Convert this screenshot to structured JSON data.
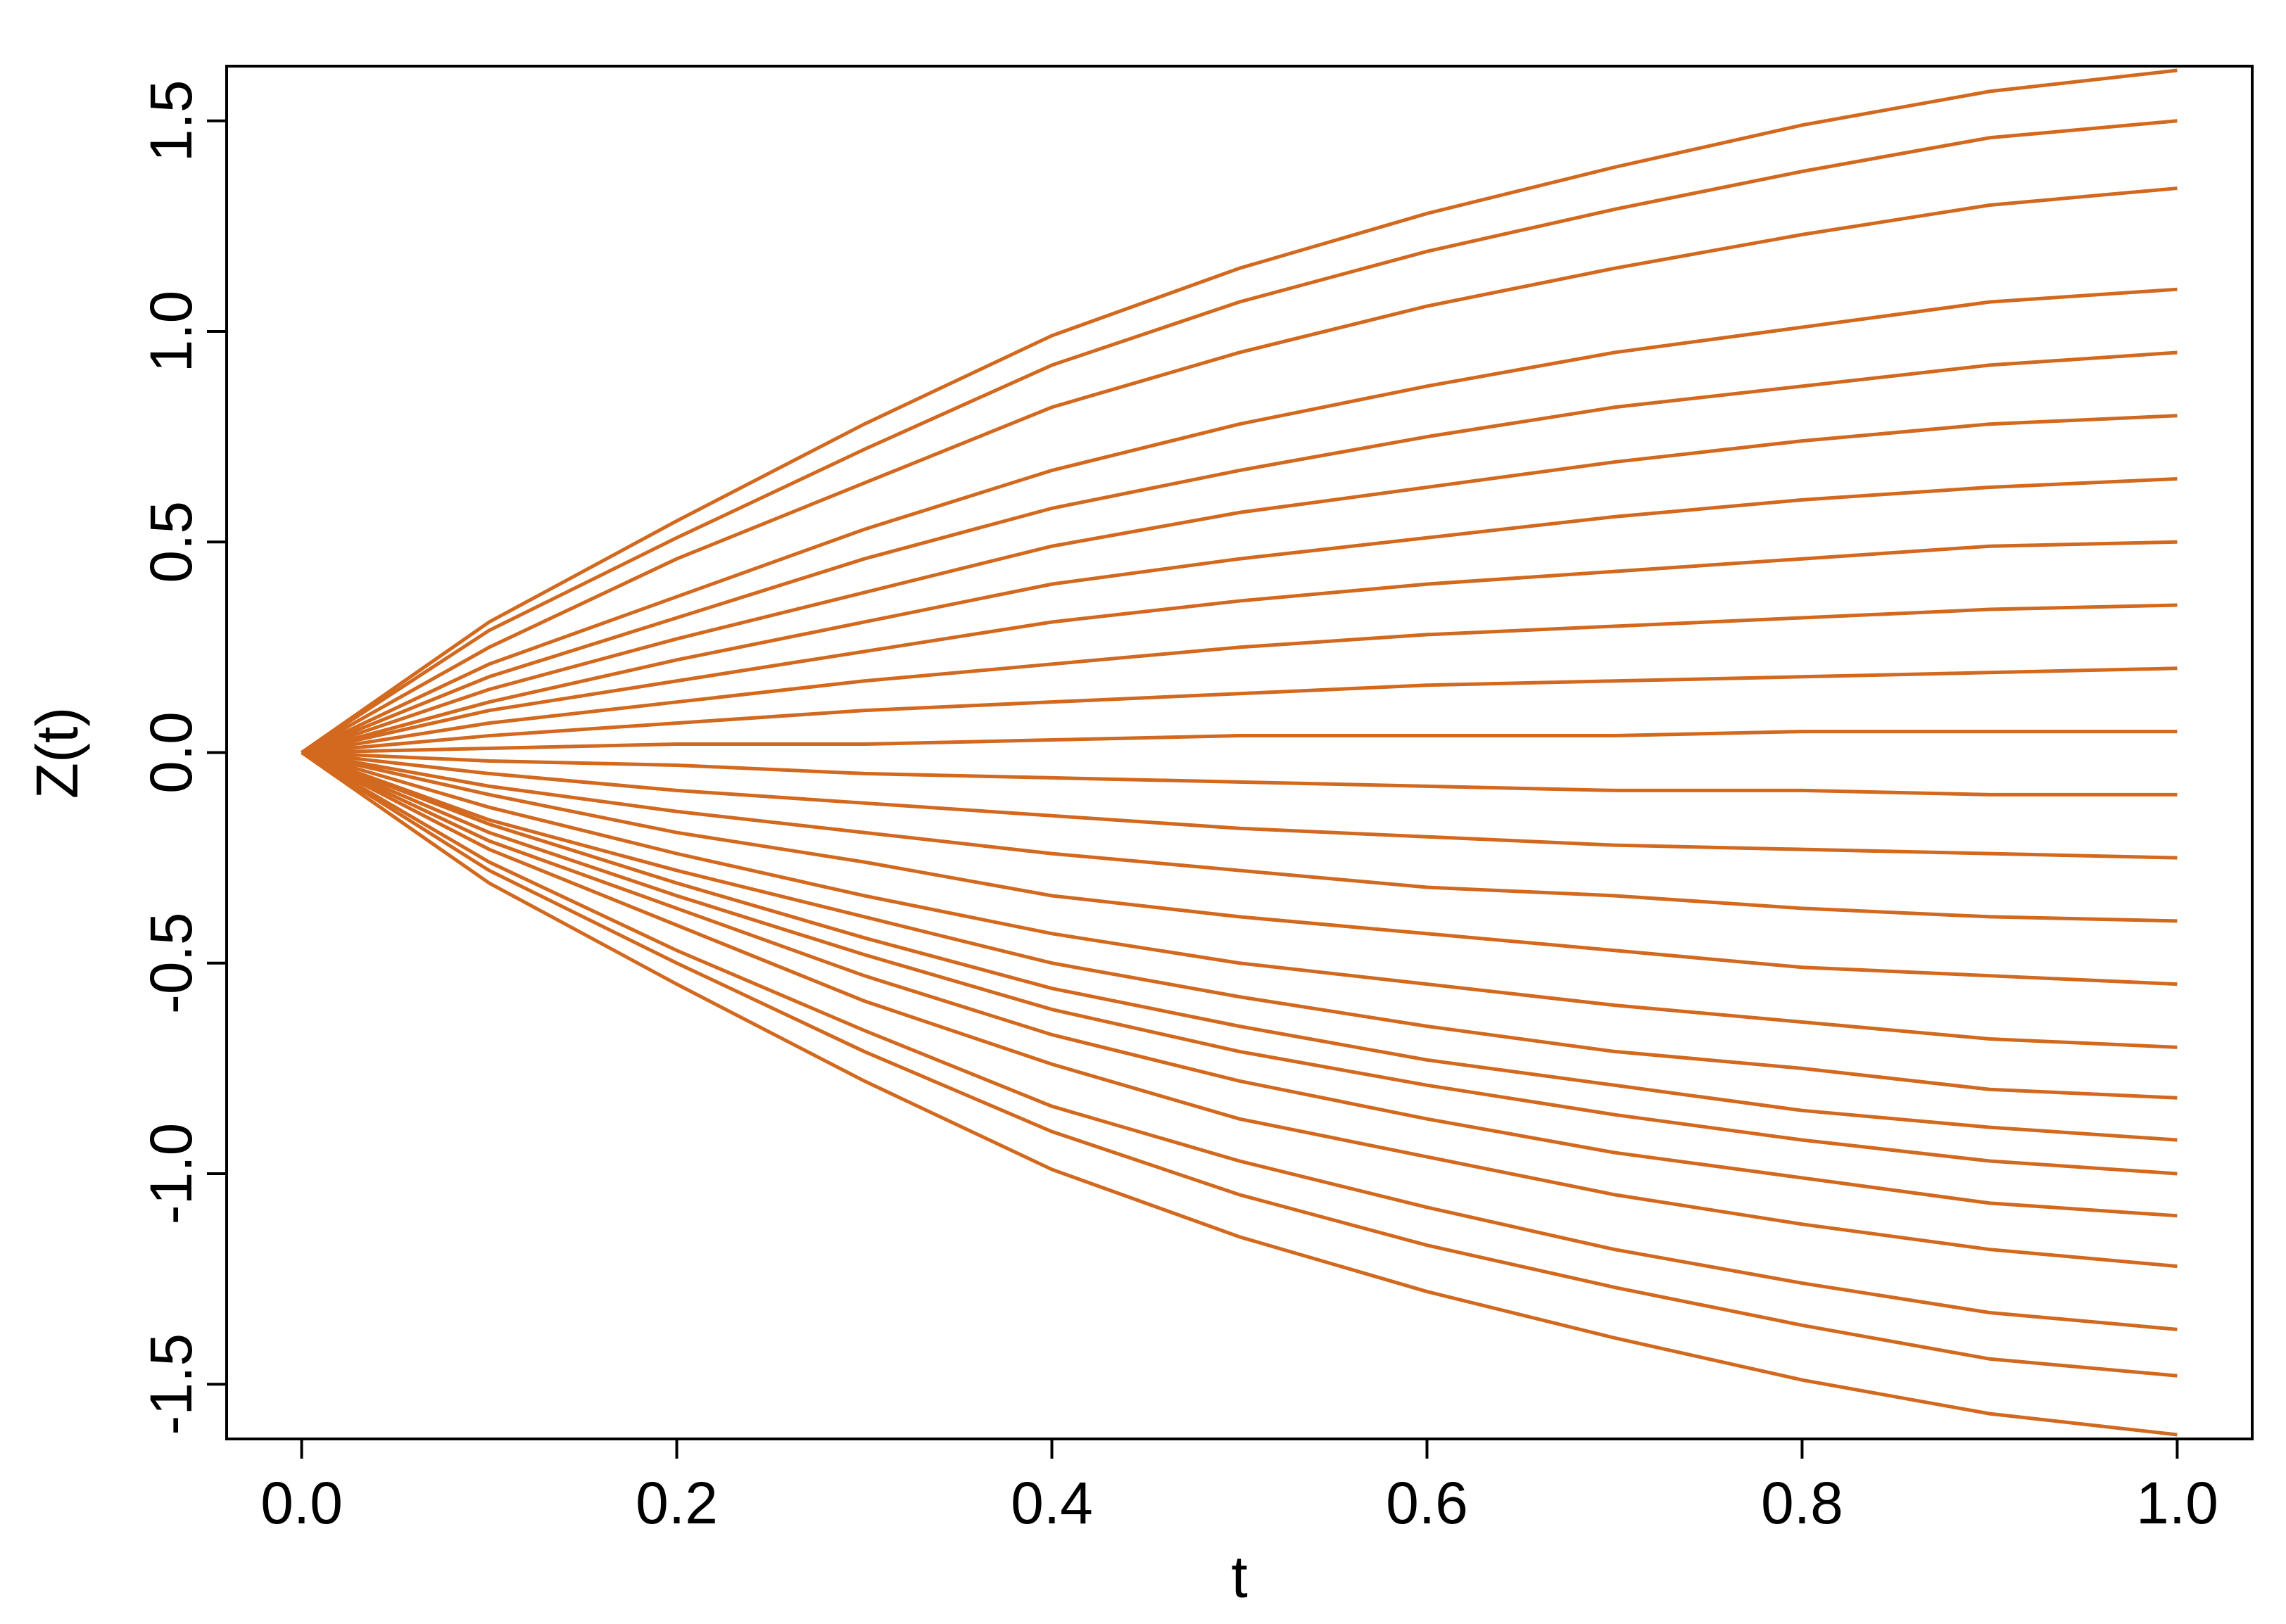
{
  "chart_data": {
    "type": "line",
    "xlabel": "t",
    "ylabel": "Z(t)",
    "color": "#d2691e",
    "xlim": [
      -0.04,
      1.04
    ],
    "ylim": [
      -1.63,
      1.63
    ],
    "xticks": [
      {
        "value": 0,
        "label": "0.0"
      },
      0.2,
      0.4,
      0.6,
      0.8,
      {
        "value": 1,
        "label": "1.0"
      }
    ],
    "yticks": [
      -1.5,
      {
        "value": -1,
        "label": "-1.0"
      },
      -0.5,
      {
        "value": 0,
        "label": "0.0"
      },
      0.5,
      {
        "value": 1,
        "label": "1.0"
      },
      1.5
    ],
    "x": [
      0,
      0.1,
      0.2,
      0.3,
      0.4,
      0.5,
      0.6,
      0.7,
      0.8,
      0.9,
      1
    ],
    "series": [
      {
        "values": [
          0,
          0.31,
          0.55,
          0.78,
          0.99,
          1.15,
          1.28,
          1.39,
          1.49,
          1.57,
          1.62
        ]
      },
      {
        "values": [
          0,
          0.29,
          0.51,
          0.72,
          0.92,
          1.07,
          1.19,
          1.29,
          1.38,
          1.46,
          1.5
        ]
      },
      {
        "values": [
          0,
          0.25,
          0.46,
          0.64,
          0.82,
          0.95,
          1.06,
          1.15,
          1.23,
          1.3,
          1.34
        ]
      },
      {
        "values": [
          0,
          0.21,
          0.37,
          0.53,
          0.67,
          0.78,
          0.87,
          0.95,
          1.01,
          1.07,
          1.1
        ]
      },
      {
        "values": [
          0,
          0.18,
          0.32,
          0.46,
          0.58,
          0.67,
          0.75,
          0.82,
          0.87,
          0.92,
          0.95
        ]
      },
      {
        "values": [
          0,
          0.15,
          0.27,
          0.38,
          0.49,
          0.57,
          0.63,
          0.69,
          0.74,
          0.78,
          0.8
        ]
      },
      {
        "values": [
          0,
          0.12,
          0.22,
          0.31,
          0.4,
          0.46,
          0.51,
          0.56,
          0.6,
          0.63,
          0.65
        ]
      },
      {
        "values": [
          0,
          0.1,
          0.17,
          0.24,
          0.31,
          0.36,
          0.4,
          0.43,
          0.46,
          0.49,
          0.5
        ]
      },
      {
        "values": [
          0,
          0.07,
          0.12,
          0.17,
          0.21,
          0.25,
          0.28,
          0.3,
          0.32,
          0.34,
          0.35
        ]
      },
      {
        "values": [
          0,
          0.04,
          0.07,
          0.1,
          0.12,
          0.14,
          0.16,
          0.17,
          0.18,
          0.19,
          0.2
        ]
      },
      {
        "values": [
          0,
          0.01,
          0.02,
          0.02,
          0.03,
          0.04,
          0.04,
          0.04,
          0.05,
          0.05,
          0.05
        ]
      },
      {
        "values": [
          0,
          -0.02,
          -0.03,
          -0.05,
          -0.06,
          -0.07,
          -0.08,
          -0.09,
          -0.09,
          -0.1,
          -0.1
        ]
      },
      {
        "values": [
          0,
          -0.05,
          -0.09,
          -0.12,
          -0.15,
          -0.18,
          -0.2,
          -0.22,
          -0.23,
          -0.24,
          -0.25
        ]
      },
      {
        "values": [
          0,
          -0.08,
          -0.14,
          -0.19,
          -0.24,
          -0.28,
          -0.32,
          -0.34,
          -0.37,
          -0.39,
          -0.4
        ]
      },
      {
        "values": [
          0,
          -0.1,
          -0.19,
          -0.26,
          -0.34,
          -0.39,
          -0.43,
          -0.47,
          -0.51,
          -0.53,
          -0.55
        ]
      },
      {
        "values": [
          0,
          -0.13,
          -0.24,
          -0.34,
          -0.43,
          -0.5,
          -0.55,
          -0.6,
          -0.64,
          -0.68,
          -0.7
        ]
      },
      {
        "values": [
          0,
          -0.16,
          -0.28,
          -0.39,
          -0.5,
          -0.58,
          -0.65,
          -0.71,
          -0.75,
          -0.8,
          -0.82
        ]
      },
      {
        "values": [
          0,
          -0.17,
          -0.31,
          -0.44,
          -0.56,
          -0.65,
          -0.73,
          -0.79,
          -0.85,
          -0.89,
          -0.92
        ]
      },
      {
        "values": [
          0,
          -0.19,
          -0.34,
          -0.48,
          -0.61,
          -0.71,
          -0.79,
          -0.86,
          -0.92,
          -0.97,
          -1.0
        ]
      },
      {
        "values": [
          0,
          -0.21,
          -0.37,
          -0.53,
          -0.67,
          -0.78,
          -0.87,
          -0.95,
          -1.01,
          -1.07,
          -1.1
        ]
      },
      {
        "values": [
          0,
          -0.23,
          -0.41,
          -0.59,
          -0.74,
          -0.87,
          -0.96,
          -1.05,
          -1.12,
          -1.18,
          -1.22
        ]
      },
      {
        "values": [
          0,
          -0.26,
          -0.47,
          -0.66,
          -0.84,
          -0.97,
          -1.08,
          -1.18,
          -1.26,
          -1.33,
          -1.37
        ]
      },
      {
        "values": [
          0,
          -0.28,
          -0.5,
          -0.71,
          -0.9,
          -1.05,
          -1.17,
          -1.27,
          -1.36,
          -1.44,
          -1.48
        ]
      },
      {
        "values": [
          0,
          -0.31,
          -0.55,
          -0.78,
          -0.99,
          -1.15,
          -1.28,
          -1.39,
          -1.49,
          -1.57,
          -1.62
        ]
      }
    ]
  }
}
